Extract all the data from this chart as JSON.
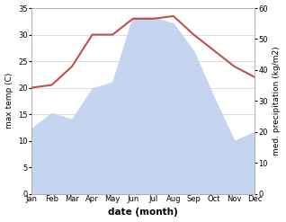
{
  "months": [
    "Jan",
    "Feb",
    "Mar",
    "Apr",
    "May",
    "Jun",
    "Jul",
    "Aug",
    "Sep",
    "Oct",
    "Nov",
    "Dec"
  ],
  "month_indices": [
    0,
    1,
    2,
    3,
    4,
    5,
    6,
    7,
    8,
    9,
    10,
    11
  ],
  "temp": [
    20,
    20.5,
    24,
    30,
    30,
    33,
    33,
    33.5,
    30,
    27,
    24,
    22
  ],
  "precip": [
    21,
    26,
    24,
    34,
    36,
    57,
    57,
    55,
    46,
    31,
    17,
    20
  ],
  "temp_color": "#c0504d",
  "precip_fill_color": "#c5d5f0",
  "temp_ylim": [
    0,
    35
  ],
  "precip_ylim": [
    0,
    60
  ],
  "temp_yticks": [
    0,
    5,
    10,
    15,
    20,
    25,
    30,
    35
  ],
  "precip_yticks": [
    0,
    10,
    20,
    30,
    40,
    50,
    60
  ],
  "xlabel": "date (month)",
  "ylabel_left": "max temp (C)",
  "ylabel_right": "med. precipitation (kg/m2)",
  "bg_color": "#ffffff",
  "grid_color": "#d0d0d0",
  "font_size_axis": 6.5,
  "font_size_ticks": 6,
  "font_size_xlabel": 7.5
}
